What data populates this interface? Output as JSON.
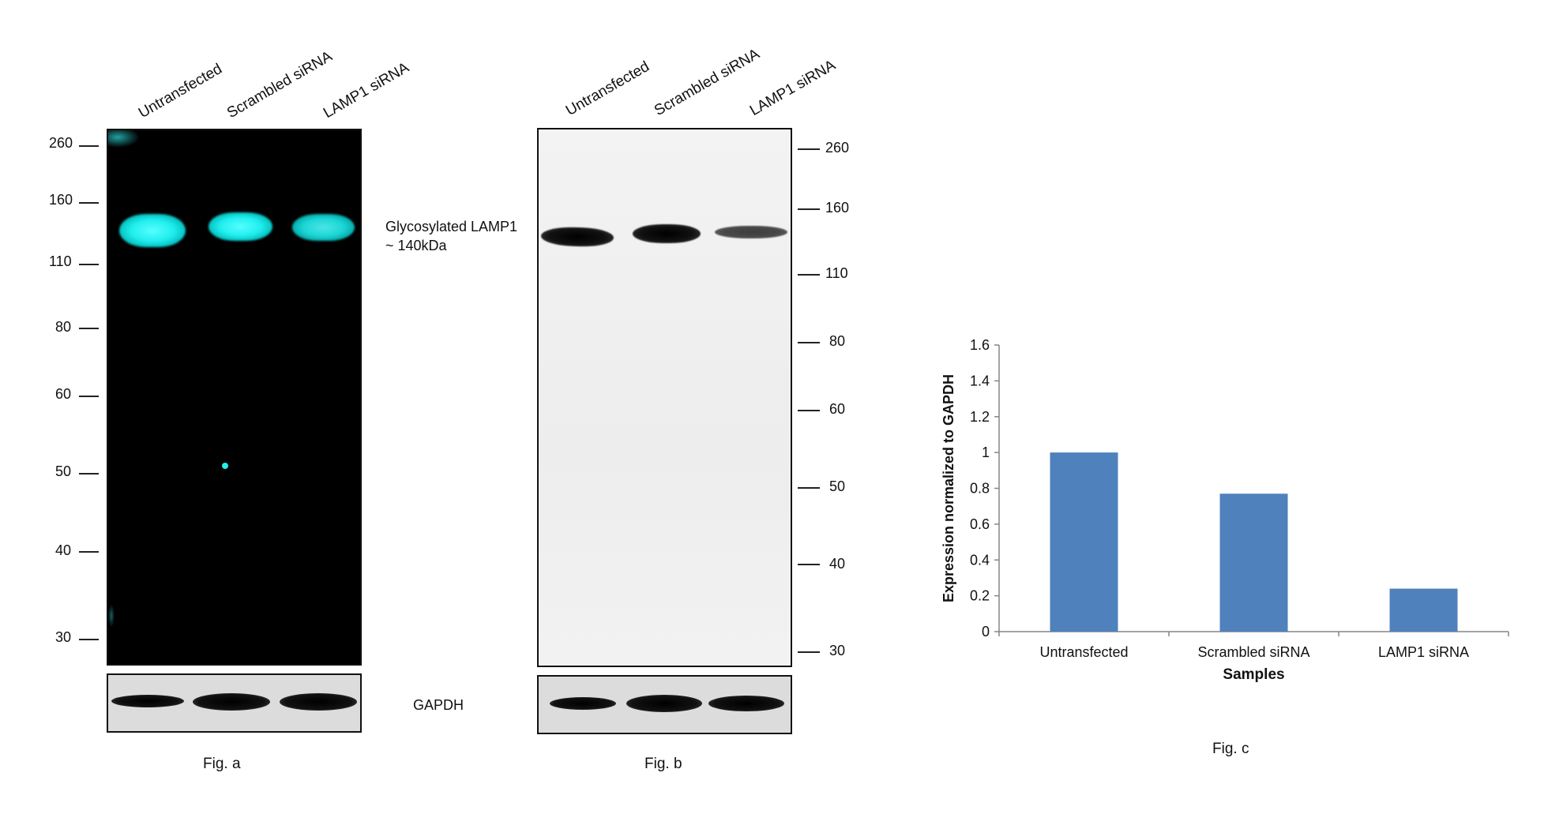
{
  "figure_a": {
    "lanes": [
      "Untransfected",
      "Scrambled siRNA",
      "LAMP1 siRNA"
    ],
    "markers": [
      "260",
      "160",
      "110",
      "80",
      "60",
      "50",
      "40",
      "30"
    ],
    "band_label_line1": "Glycosylated LAMP1",
    "band_label_line2": "~ 140kDa",
    "loading_control": "GAPDH",
    "caption": "Fig. a",
    "band_color": "#22e5e5"
  },
  "figure_b": {
    "lanes": [
      "Untransfected",
      "Scrambled siRNA",
      "LAMP1 siRNA"
    ],
    "markers": [
      "260",
      "160",
      "110",
      "80",
      "60",
      "50",
      "40",
      "30"
    ],
    "caption": "Fig. b"
  },
  "chart_data": {
    "type": "bar",
    "categories": [
      "Untransfected",
      "Scrambled siRNA",
      "LAMP1 siRNA"
    ],
    "values": [
      1.0,
      0.77,
      0.24
    ],
    "ylabel": "Expression normalized to GAPDH",
    "xlabel": "Samples",
    "ylim": [
      0,
      1.6
    ],
    "yticks": [
      "0",
      "0.2",
      "0.4",
      "0.6",
      "0.8",
      "1",
      "1.2",
      "1.4",
      "1.6"
    ],
    "bar_color": "#4f81bd",
    "grid": false,
    "caption": "Fig. c"
  }
}
